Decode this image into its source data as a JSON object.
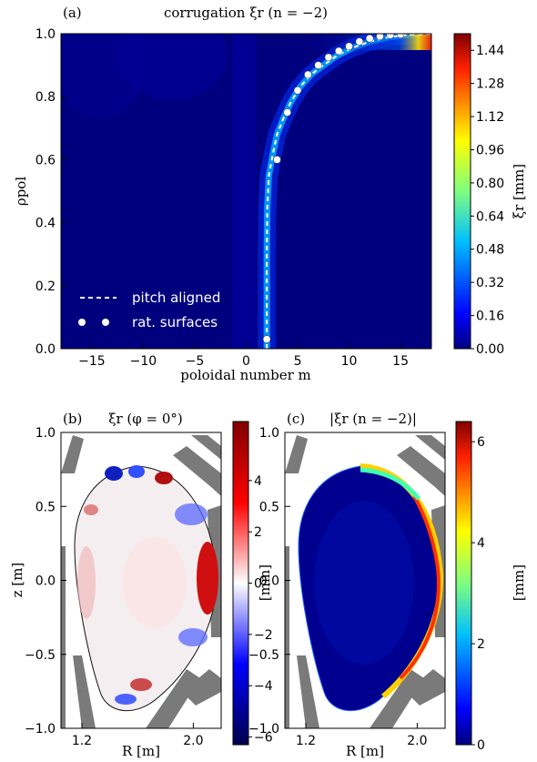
{
  "chart_data": [
    {
      "panel": "(a)",
      "type": "heatmap",
      "title": "corrugation ξr (n = −2)",
      "xlabel": "poloidal number m",
      "ylabel": "ρpol",
      "xlim": [
        -18,
        18
      ],
      "ylim": [
        0.0,
        1.0
      ],
      "xticks": [
        -15,
        -10,
        -5,
        0,
        5,
        10,
        15
      ],
      "yticks": [
        0.0,
        0.2,
        0.4,
        0.6,
        0.8,
        1.0
      ],
      "colorbar": {
        "label": "ξr [mm]",
        "range": [
          0.0,
          1.52
        ],
        "ticks": [
          "0.00",
          "0.16",
          "0.32",
          "0.48",
          "0.64",
          "0.80",
          "0.96",
          "1.12",
          "1.28",
          "1.44"
        ],
        "colormap": "jet"
      },
      "legend": {
        "placement": "lower-left",
        "entries": [
          "pitch aligned",
          "rat. surfaces"
        ]
      },
      "series": [
        {
          "name": "pitch aligned",
          "type": "line",
          "x": [
            2.0,
            2.0,
            2.05,
            2.2,
            2.6,
            3.0,
            3.6,
            4.3,
            5.2,
            6.3,
            7.5,
            8.8,
            10.3,
            12.0,
            14.0,
            16.0,
            18.0
          ],
          "y": [
            0.0,
            0.3,
            0.45,
            0.55,
            0.62,
            0.68,
            0.73,
            0.78,
            0.83,
            0.87,
            0.9,
            0.93,
            0.955,
            0.975,
            0.99,
            0.997,
            1.0
          ]
        },
        {
          "name": "rat. surfaces",
          "type": "scatter",
          "x": [
            2,
            3,
            4,
            5,
            6,
            7,
            8,
            9,
            10,
            11,
            12,
            13,
            14,
            15
          ],
          "y": [
            0.03,
            0.6,
            0.75,
            0.82,
            0.87,
            0.9,
            0.925,
            0.945,
            0.96,
            0.975,
            0.985,
            0.992,
            0.996,
            0.998
          ]
        }
      ]
    },
    {
      "panel": "(b)",
      "type": "heatmap",
      "title": "ξr (φ = 0°)",
      "xlabel": "R [m]",
      "ylabel": "z [m]",
      "xlim": [
        1.05,
        2.2
      ],
      "ylim": [
        -1.0,
        1.0
      ],
      "xticks": [
        "1.2",
        "2.0"
      ],
      "yticks": [
        "−1.0",
        "−0.5",
        "0.0",
        "0.5",
        "1.0"
      ],
      "colorbar": {
        "label": "[mm]",
        "range": [
          -6.3,
          6.3
        ],
        "ticks": [
          "4",
          "2",
          "0",
          "−2",
          "−4",
          "−6"
        ],
        "colormap": "seismic"
      }
    },
    {
      "panel": "(c)",
      "type": "heatmap",
      "title": "|ξr (n = −2)|",
      "xlabel": "R [m]",
      "ylabel": "",
      "xlim": [
        1.05,
        2.2
      ],
      "ylim": [
        -1.0,
        1.0
      ],
      "xticks": [
        "1.2",
        "2.0"
      ],
      "yticks": [
        "−1.0",
        "−0.5",
        "0.0",
        "0.5",
        "1.0"
      ],
      "colorbar": {
        "label": "[mm]",
        "range": [
          0,
          6.4
        ],
        "ticks": [
          "6",
          "4",
          "2",
          "0"
        ],
        "colormap": "jet"
      }
    }
  ]
}
